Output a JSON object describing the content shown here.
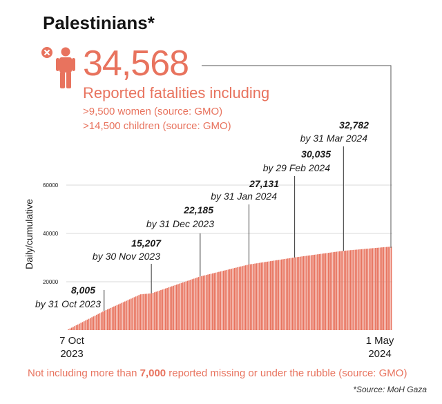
{
  "title": "Palestinians*",
  "headline": {
    "number": "34,568",
    "line1": "Reported fatalities including",
    "line2": ">9,500 women (source: GMO)",
    "line3": ">14,500 children (source: GMO)"
  },
  "footnote": {
    "prefix": "Not including more than ",
    "bold": "7,000",
    "suffix": " reported missing or under the rubble (source: GMO)"
  },
  "source": "*Source: MoH Gaza",
  "colors": {
    "accent": "#e8735e",
    "bar": "#e8735e"
  },
  "icons": {
    "person": "person-icon",
    "x": "x-circle-icon"
  },
  "chart_data": {
    "type": "bar",
    "ylabel": "Daily/cumulative",
    "ylim": [
      0,
      70000
    ],
    "yticks": [
      20000,
      40000,
      60000
    ],
    "x_start_label": [
      "7 Oct",
      "2023"
    ],
    "x_end_label": [
      "1 May",
      "2024"
    ],
    "x_start": "2023-10-07",
    "x_end": "2024-05-01",
    "x": [
      "2023-10-07",
      "2023-10-31",
      "2023-11-23",
      "2023-11-30",
      "2023-12-31",
      "2024-01-31",
      "2024-02-29",
      "2024-03-31",
      "2024-05-01"
    ],
    "values": [
      0,
      8005,
      14800,
      15207,
      22185,
      27131,
      30035,
      32782,
      34568
    ],
    "annotations": [
      {
        "date": "2023-10-31",
        "value": "8,005",
        "label": "by 31 Oct 2023"
      },
      {
        "date": "2023-11-30",
        "value": "15,207",
        "label": "by 30 Nov 2023"
      },
      {
        "date": "2023-12-31",
        "value": "22,185",
        "label": "by 31 Dec 2023"
      },
      {
        "date": "2024-01-31",
        "value": "27,131",
        "label": "by 31 Jan 2024"
      },
      {
        "date": "2024-02-29",
        "value": "30,035",
        "label": "by 29 Feb 2024"
      },
      {
        "date": "2024-03-31",
        "value": "32,782",
        "label": "by 31 Mar 2024"
      }
    ]
  }
}
